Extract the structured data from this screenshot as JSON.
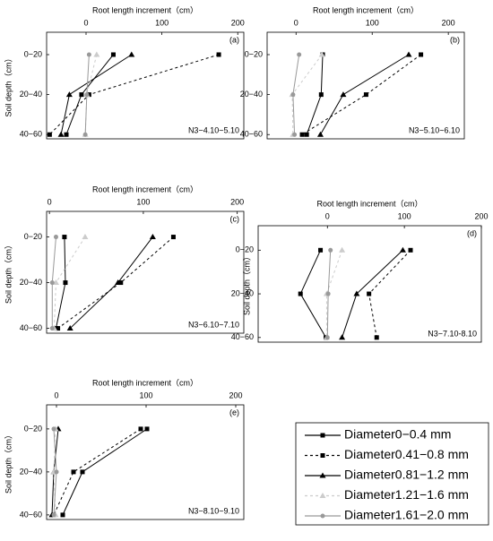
{
  "chart_data": [
    {
      "type": "line",
      "x_label": "Root length increment（cm）",
      "y_label": "Soil depth（cm）",
      "panel_label": "(a)",
      "annotation": "N3−4.10~5.10",
      "categories": [
        "0−20",
        "20−40",
        "40−60"
      ],
      "xlim": [
        -52,
        208
      ],
      "xticks": [
        0,
        100,
        200
      ],
      "series": [
        {
          "name": "Diameter0−0.4 mm",
          "color": "#000000",
          "dash": "none",
          "marker": "square",
          "values": [
            36,
            -6,
            -26
          ]
        },
        {
          "name": "Diameter0.41−0.8 mm",
          "color": "#000000",
          "dash": "3,3",
          "marker": "square",
          "values": [
            175,
            4,
            -48
          ]
        },
        {
          "name": "Diameter0.81−1.2 mm",
          "color": "#000000",
          "dash": "none",
          "marker": "triangle",
          "values": [
            60,
            -22,
            -33
          ]
        },
        {
          "name": "Diameter1.21−1.6 mm",
          "color": "#cccccc",
          "dash": "3,3",
          "marker": "triangle",
          "values": [
            14,
            1,
            -1
          ]
        },
        {
          "name": "Diameter1.61−2.0 mm",
          "color": "#999999",
          "dash": "none",
          "marker": "circle",
          "values": [
            4,
            1,
            -1
          ]
        }
      ]
    },
    {
      "type": "line",
      "x_label": "Root length increment（cm）",
      "panel_label": "(b)",
      "annotation": "N3−5.10~6.10",
      "categories": [
        "0−20",
        "20−40",
        "40−60"
      ],
      "xlim": [
        -38,
        221
      ],
      "xticks": [
        0,
        100,
        200
      ],
      "series": [
        {
          "name": "Diameter0−0.4 mm",
          "color": "#000000",
          "dash": "none",
          "marker": "square",
          "values": [
            35,
            33,
            14
          ]
        },
        {
          "name": "Diameter0.41−0.8 mm",
          "color": "#000000",
          "dash": "3,3",
          "marker": "square",
          "values": [
            164,
            92,
            8
          ]
        },
        {
          "name": "Diameter0.81−1.2 mm",
          "color": "#000000",
          "dash": "none",
          "marker": "triangle",
          "values": [
            148,
            62,
            32
          ]
        },
        {
          "name": "Diameter1.21−1.6 mm",
          "color": "#cccccc",
          "dash": "3,3",
          "marker": "triangle",
          "values": [
            34,
            -5,
            -4
          ]
        },
        {
          "name": "Diameter1.61−2.0 mm",
          "color": "#999999",
          "dash": "none",
          "marker": "circle",
          "values": [
            4,
            -4,
            -2
          ]
        }
      ]
    },
    {
      "type": "line",
      "x_label": "Root length increment（cm）",
      "y_label": "Soil depth（cm）",
      "panel_label": "(c)",
      "annotation": "N3−6.10~7.10",
      "categories": [
        "0−20",
        "20−40",
        "40−60"
      ],
      "xlim": [
        -3,
        207
      ],
      "xticks": [
        0,
        100,
        200
      ],
      "series": [
        {
          "name": "Diameter0−0.4 mm",
          "color": "#000000",
          "dash": "none",
          "marker": "square",
          "values": [
            16,
            17,
            7
          ]
        },
        {
          "name": "Diameter0.41−0.8 mm",
          "color": "#000000",
          "dash": "3,3",
          "marker": "square",
          "values": [
            132,
            76,
            9
          ]
        },
        {
          "name": "Diameter0.81−1.2 mm",
          "color": "#000000",
          "dash": "none",
          "marker": "triangle",
          "values": [
            110,
            73,
            22
          ]
        },
        {
          "name": "Diameter1.21−1.6 mm",
          "color": "#cccccc",
          "dash": "3,3",
          "marker": "triangle",
          "values": [
            38,
            7,
            5
          ]
        },
        {
          "name": "Diameter1.61−2.0 mm",
          "color": "#999999",
          "dash": "none",
          "marker": "circle",
          "values": [
            7,
            3,
            3
          ]
        }
      ]
    },
    {
      "type": "line",
      "x_label": "Root length increment（cm）",
      "y_label": "Soil depth（cm）",
      "panel_label": "(d)",
      "annotation": "N3−7.10-8.10",
      "categories": [
        "0−20",
        "20−40",
        "40−60"
      ],
      "xlim": [
        -90,
        200
      ],
      "xticks": [
        0,
        100,
        200
      ],
      "series": [
        {
          "name": "Diameter0−0.4 mm",
          "color": "#000000",
          "dash": "none",
          "marker": "square",
          "values": [
            -9,
            -35,
            -2
          ]
        },
        {
          "name": "Diameter0.41−0.8 mm",
          "color": "#000000",
          "dash": "3,3",
          "marker": "square",
          "values": [
            108,
            54,
            64
          ]
        },
        {
          "name": "Diameter0.81−1.2 mm",
          "color": "#000000",
          "dash": "none",
          "marker": "triangle",
          "values": [
            98,
            38,
            19
          ]
        },
        {
          "name": "Diameter1.21−1.6 mm",
          "color": "#cccccc",
          "dash": "3,3",
          "marker": "triangle",
          "values": [
            19,
            -1,
            -1
          ]
        },
        {
          "name": "Diameter1.61−2.0 mm",
          "color": "#999999",
          "dash": "none",
          "marker": "circle",
          "values": [
            4,
            1,
            0
          ]
        }
      ]
    },
    {
      "type": "line",
      "x_label": "Root length increment（cm）",
      "y_label": "Soil depth（cm）",
      "panel_label": "(e)",
      "annotation": "N3−8.10~9.10",
      "categories": [
        "0−20",
        "20−40",
        "40−60"
      ],
      "xlim": [
        -11,
        209
      ],
      "xticks": [
        0,
        100,
        200
      ],
      "series": [
        {
          "name": "Diameter0−0.4 mm",
          "color": "#000000",
          "dash": "none",
          "marker": "square",
          "values": [
            101,
            29,
            7
          ]
        },
        {
          "name": "Diameter0.41−0.8 mm",
          "color": "#000000",
          "dash": "3,3",
          "marker": "square",
          "values": [
            94,
            19,
            -3
          ]
        },
        {
          "name": "Diameter0.81−1.2 mm",
          "color": "#000000",
          "dash": "none",
          "marker": "triangle",
          "values": [
            2,
            -3,
            -5
          ]
        },
        {
          "name": "Diameter1.21−1.6 mm",
          "color": "#cccccc",
          "dash": "3,3",
          "marker": "triangle",
          "values": [
            -1,
            -3,
            -1
          ]
        },
        {
          "name": "Diameter1.61−2.0 mm",
          "color": "#999999",
          "dash": "none",
          "marker": "circle",
          "values": [
            -3,
            0,
            -3
          ]
        }
      ]
    }
  ]
}
